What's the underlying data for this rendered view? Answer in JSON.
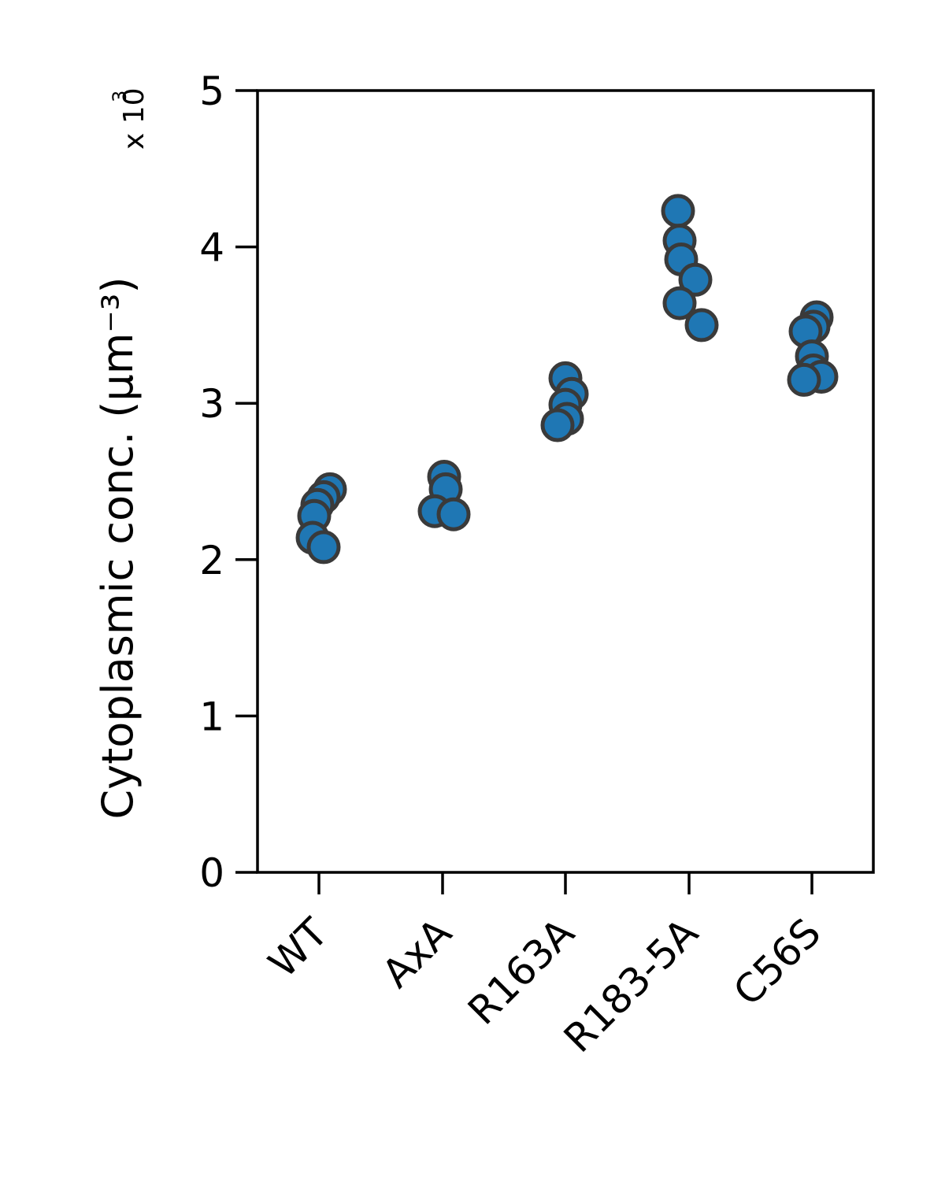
{
  "chart_data": {
    "type": "scatter",
    "title": "",
    "xlabel": "",
    "ylabel": "Cytoplasmic conc. (µm⁻³)",
    "y_multiplier": "x 10",
    "y_multiplier_exponent": "3",
    "ylim": [
      0,
      5
    ],
    "yticks": [
      0,
      1,
      2,
      3,
      4,
      5
    ],
    "ytick_labels": [
      "0",
      "1",
      "2",
      "3",
      "4",
      "5"
    ],
    "categories": [
      "WT",
      "AxA",
      "R163A",
      "R183-5A",
      "C56S"
    ],
    "series": [
      {
        "values": [
          [
            2.45,
            2.4,
            2.35,
            2.28,
            2.14,
            2.08
          ],
          [
            2.53,
            2.45,
            2.31,
            2.29
          ],
          [
            3.16,
            3.06,
            2.99,
            2.9,
            2.86
          ],
          [
            4.23,
            4.04,
            3.92,
            3.79,
            3.64,
            3.5
          ],
          [
            3.55,
            3.49,
            3.46,
            3.3,
            3.21,
            3.17,
            3.15
          ]
        ]
      }
    ],
    "marker_color": "#1f77b4",
    "marker_edge_color": "#3a3a3a",
    "grid": false
  }
}
